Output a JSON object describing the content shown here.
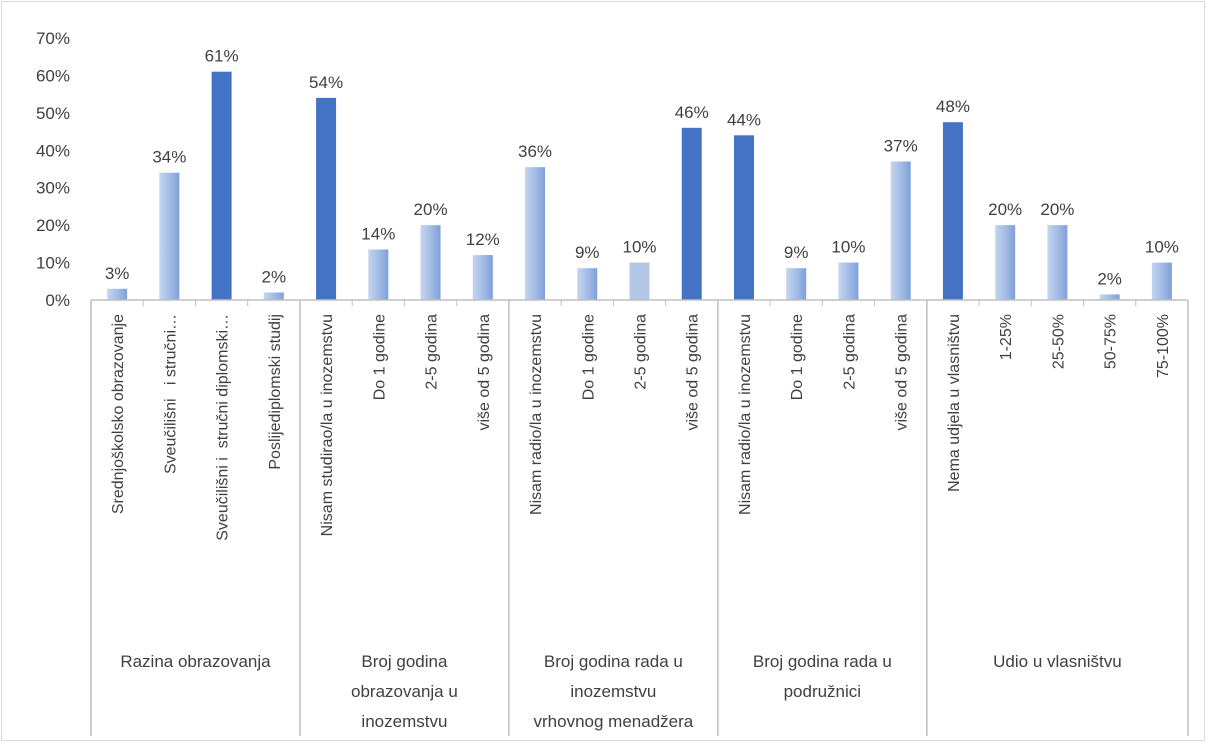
{
  "chart_data": {
    "type": "bar",
    "ylim": [
      0,
      70
    ],
    "yticks": [
      "0%",
      "10%",
      "20%",
      "30%",
      "40%",
      "50%",
      "60%",
      "70%"
    ],
    "legend": "none",
    "grid": false,
    "colors": {
      "highlight": "#4472c4",
      "normal": "#a9c0e6",
      "light": "#b4c7e7",
      "axis": "#bfbfbf",
      "text": "#404040"
    },
    "groups": [
      {
        "name": "Razina obrazovanja",
        "name_lines": [
          "Razina obrazovanja"
        ],
        "categories": [
          {
            "label": "Srednjoškolsko obrazovanje",
            "value": 3,
            "data_label": "3%",
            "style": "normal"
          },
          {
            "label": "Sveučilišni   i stručni…",
            "value": 34,
            "data_label": "34%",
            "style": "normal"
          },
          {
            "label": "Sveučilišni i  stručni diplomski…",
            "value": 61,
            "data_label": "61%",
            "style": "highlight"
          },
          {
            "label": "Poslijediplomski studij",
            "value": 2,
            "data_label": "2%",
            "style": "normal"
          }
        ]
      },
      {
        "name": "Broj godina obrazovanja u inozemstvu",
        "name_lines": [
          "Broj godina",
          "obrazovanja u",
          "inozemstvu"
        ],
        "categories": [
          {
            "label": "Nisam studirao/la u inozemstvu",
            "value": 54,
            "data_label": "54%",
            "style": "highlight"
          },
          {
            "label": "Do 1 godine",
            "value": 13.5,
            "data_label": "14%",
            "style": "normal"
          },
          {
            "label": "2-5 godina",
            "value": 20,
            "data_label": "20%",
            "style": "normal"
          },
          {
            "label": "više od 5 godina",
            "value": 12,
            "data_label": "12%",
            "style": "normal"
          }
        ]
      },
      {
        "name": "Broj godina rada u inozemstvu vrhovnog menadžera",
        "name_lines": [
          "Broj godina rada u",
          "inozemstvu",
          "vrhovnog menadžera"
        ],
        "categories": [
          {
            "label": "Nisam radio/la u inozemstvu",
            "value": 35.5,
            "data_label": "36%",
            "style": "normal"
          },
          {
            "label": "Do 1 godine",
            "value": 8.5,
            "data_label": "9%",
            "style": "normal"
          },
          {
            "label": "2-5 godina",
            "value": 10,
            "data_label": "10%",
            "style": "light"
          },
          {
            "label": "više od 5 godina",
            "value": 46,
            "data_label": "46%",
            "style": "highlight"
          }
        ]
      },
      {
        "name": "Broj godina rada u podružnici",
        "name_lines": [
          "Broj godina rada u",
          "podružnici"
        ],
        "categories": [
          {
            "label": "Nisam radio/la u inozemstvu",
            "value": 44,
            "data_label": "44%",
            "style": "highlight"
          },
          {
            "label": "Do 1 godine",
            "value": 8.5,
            "data_label": "9%",
            "style": "normal"
          },
          {
            "label": "2-5 godina",
            "value": 10,
            "data_label": "10%",
            "style": "normal"
          },
          {
            "label": "više od 5 godina",
            "value": 37,
            "data_label": "37%",
            "style": "normal"
          }
        ]
      },
      {
        "name": "Udio u vlasništvu",
        "name_lines": [
          "Udio u vlasništvu"
        ],
        "categories": [
          {
            "label": "Nema udjela u vlasništvu",
            "value": 47.5,
            "data_label": "48%",
            "style": "highlight"
          },
          {
            "label": "1-25%",
            "value": 20,
            "data_label": "20%",
            "style": "normal"
          },
          {
            "label": "25-50%",
            "value": 20,
            "data_label": "20%",
            "style": "normal"
          },
          {
            "label": "50-75%",
            "value": 1.5,
            "data_label": "2%",
            "style": "normal"
          },
          {
            "label": "75-100%",
            "value": 10,
            "data_label": "10%",
            "style": "normal"
          }
        ]
      }
    ]
  }
}
